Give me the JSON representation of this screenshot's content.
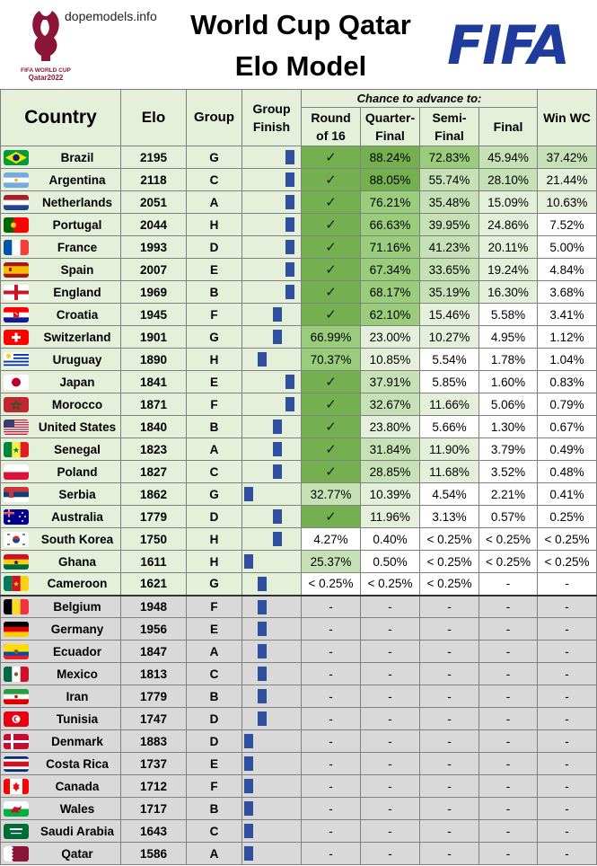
{
  "site": "dopemodels.info",
  "title_line1": "World Cup Qatar",
  "title_line2": "Elo Model",
  "logo_text": {
    "brand": "FIFA",
    "badge1": "FIFA WORLD CUP",
    "badge2": "Qatar2022"
  },
  "colors": {
    "header_green": "#e4f0da",
    "bar_blue": "#2f4f9f",
    "eliminated_gray": "#d9d9d9",
    "fifa_blue": "#1f3c9c"
  },
  "headers": {
    "country": "Country",
    "elo": "Elo",
    "group": "Group",
    "group_finish_1": "Group",
    "group_finish_2": "Finish",
    "chance": "Chance to advance to:",
    "r16_1": "Round",
    "r16_2": "of 16",
    "qf_1": "Quarter-",
    "qf_2": "Final",
    "sf_1": "Semi-",
    "sf_2": "Final",
    "final": "Final",
    "win": "Win WC"
  },
  "rows": [
    {
      "country": "Brazil",
      "flag": "brazil",
      "elo": "2195",
      "group": "G",
      "finish": 1,
      "r16": "✓",
      "qf": "88.24%",
      "sf": "72.83%",
      "final": "45.94%",
      "win": "37.42%",
      "status": "advanced"
    },
    {
      "country": "Argentina",
      "flag": "argentina",
      "elo": "2118",
      "group": "C",
      "finish": 1,
      "r16": "✓",
      "qf": "88.05%",
      "sf": "55.74%",
      "final": "28.10%",
      "win": "21.44%",
      "status": "advanced"
    },
    {
      "country": "Netherlands",
      "flag": "netherlands",
      "elo": "2051",
      "group": "A",
      "finish": 1,
      "r16": "✓",
      "qf": "76.21%",
      "sf": "35.48%",
      "final": "15.09%",
      "win": "10.63%",
      "status": "advanced"
    },
    {
      "country": "Portugal",
      "flag": "portugal",
      "elo": "2044",
      "group": "H",
      "finish": 1,
      "r16": "✓",
      "qf": "66.63%",
      "sf": "39.95%",
      "final": "24.86%",
      "win": "7.52%",
      "status": "advanced"
    },
    {
      "country": "France",
      "flag": "france",
      "elo": "1993",
      "group": "D",
      "finish": 1,
      "r16": "✓",
      "qf": "71.16%",
      "sf": "41.23%",
      "final": "20.11%",
      "win": "5.00%",
      "status": "advanced"
    },
    {
      "country": "Spain",
      "flag": "spain",
      "elo": "2007",
      "group": "E",
      "finish": 1,
      "r16": "✓",
      "qf": "67.34%",
      "sf": "33.65%",
      "final": "19.24%",
      "win": "4.84%",
      "status": "advanced"
    },
    {
      "country": "England",
      "flag": "england",
      "elo": "1969",
      "group": "B",
      "finish": 1,
      "r16": "✓",
      "qf": "68.17%",
      "sf": "35.19%",
      "final": "16.30%",
      "win": "3.68%",
      "status": "advanced"
    },
    {
      "country": "Croatia",
      "flag": "croatia",
      "elo": "1945",
      "group": "F",
      "finish": 2,
      "r16": "✓",
      "qf": "62.10%",
      "sf": "15.46%",
      "final": "5.58%",
      "win": "3.41%",
      "status": "advanced"
    },
    {
      "country": "Switzerland",
      "flag": "switzerland",
      "elo": "1901",
      "group": "G",
      "finish": 2,
      "r16": "66.99%",
      "qf": "23.00%",
      "sf": "10.27%",
      "final": "4.95%",
      "win": "1.12%",
      "status": "pending"
    },
    {
      "country": "Uruguay",
      "flag": "uruguay",
      "elo": "1890",
      "group": "H",
      "finish": 3,
      "r16": "70.37%",
      "qf": "10.85%",
      "sf": "5.54%",
      "final": "1.78%",
      "win": "1.04%",
      "status": "pending"
    },
    {
      "country": "Japan",
      "flag": "japan",
      "elo": "1841",
      "group": "E",
      "finish": 1,
      "r16": "✓",
      "qf": "37.91%",
      "sf": "5.85%",
      "final": "1.60%",
      "win": "0.83%",
      "status": "advanced"
    },
    {
      "country": "Morocco",
      "flag": "morocco",
      "elo": "1871",
      "group": "F",
      "finish": 1,
      "r16": "✓",
      "qf": "32.67%",
      "sf": "11.66%",
      "final": "5.06%",
      "win": "0.79%",
      "status": "advanced"
    },
    {
      "country": "United States",
      "flag": "usa",
      "elo": "1840",
      "group": "B",
      "finish": 2,
      "r16": "✓",
      "qf": "23.80%",
      "sf": "5.66%",
      "final": "1.30%",
      "win": "0.67%",
      "status": "advanced"
    },
    {
      "country": "Senegal",
      "flag": "senegal",
      "elo": "1823",
      "group": "A",
      "finish": 2,
      "r16": "✓",
      "qf": "31.84%",
      "sf": "11.90%",
      "final": "3.79%",
      "win": "0.49%",
      "status": "advanced"
    },
    {
      "country": "Poland",
      "flag": "poland",
      "elo": "1827",
      "group": "C",
      "finish": 2,
      "r16": "✓",
      "qf": "28.85%",
      "sf": "11.68%",
      "final": "3.52%",
      "win": "0.48%",
      "status": "advanced"
    },
    {
      "country": "Serbia",
      "flag": "serbia",
      "elo": "1862",
      "group": "G",
      "finish": 4,
      "r16": "32.77%",
      "qf": "10.39%",
      "sf": "4.54%",
      "final": "2.21%",
      "win": "0.41%",
      "status": "pending"
    },
    {
      "country": "Australia",
      "flag": "australia",
      "elo": "1779",
      "group": "D",
      "finish": 2,
      "r16": "✓",
      "qf": "11.96%",
      "sf": "3.13%",
      "final": "0.57%",
      "win": "0.25%",
      "status": "advanced"
    },
    {
      "country": "South Korea",
      "flag": "southkorea",
      "elo": "1750",
      "group": "H",
      "finish": 2,
      "r16": "4.27%",
      "qf": "0.40%",
      "sf": "< 0.25%",
      "final": "< 0.25%",
      "win": "< 0.25%",
      "status": "pending"
    },
    {
      "country": "Ghana",
      "flag": "ghana",
      "elo": "1611",
      "group": "H",
      "finish": 4,
      "r16": "25.37%",
      "qf": "0.50%",
      "sf": "< 0.25%",
      "final": "< 0.25%",
      "win": "< 0.25%",
      "status": "pending"
    },
    {
      "country": "Cameroon",
      "flag": "cameroon",
      "elo": "1621",
      "group": "G",
      "finish": 3,
      "r16": "< 0.25%",
      "qf": "< 0.25%",
      "sf": "< 0.25%",
      "final": "-",
      "win": "-",
      "status": "pending"
    },
    {
      "country": "Belgium",
      "flag": "belgium",
      "elo": "1948",
      "group": "F",
      "finish": 3,
      "r16": "-",
      "qf": "-",
      "sf": "-",
      "final": "-",
      "win": "-",
      "status": "eliminated"
    },
    {
      "country": "Germany",
      "flag": "germany",
      "elo": "1956",
      "group": "E",
      "finish": 3,
      "r16": "-",
      "qf": "-",
      "sf": "-",
      "final": "-",
      "win": "-",
      "status": "eliminated"
    },
    {
      "country": "Ecuador",
      "flag": "ecuador",
      "elo": "1847",
      "group": "A",
      "finish": 3,
      "r16": "-",
      "qf": "-",
      "sf": "-",
      "final": "-",
      "win": "-",
      "status": "eliminated"
    },
    {
      "country": "Mexico",
      "flag": "mexico",
      "elo": "1813",
      "group": "C",
      "finish": 3,
      "r16": "-",
      "qf": "-",
      "sf": "-",
      "final": "-",
      "win": "-",
      "status": "eliminated"
    },
    {
      "country": "Iran",
      "flag": "iran",
      "elo": "1779",
      "group": "B",
      "finish": 3,
      "r16": "-",
      "qf": "-",
      "sf": "-",
      "final": "-",
      "win": "-",
      "status": "eliminated"
    },
    {
      "country": "Tunisia",
      "flag": "tunisia",
      "elo": "1747",
      "group": "D",
      "finish": 3,
      "r16": "-",
      "qf": "-",
      "sf": "-",
      "final": "-",
      "win": "-",
      "status": "eliminated"
    },
    {
      "country": "Denmark",
      "flag": "denmark",
      "elo": "1883",
      "group": "D",
      "finish": 4,
      "r16": "-",
      "qf": "-",
      "sf": "-",
      "final": "-",
      "win": "-",
      "status": "eliminated"
    },
    {
      "country": "Costa Rica",
      "flag": "costarica",
      "elo": "1737",
      "group": "E",
      "finish": 4,
      "r16": "-",
      "qf": "-",
      "sf": "-",
      "final": "-",
      "win": "-",
      "status": "eliminated"
    },
    {
      "country": "Canada",
      "flag": "canada",
      "elo": "1712",
      "group": "F",
      "finish": 4,
      "r16": "-",
      "qf": "-",
      "sf": "-",
      "final": "-",
      "win": "-",
      "status": "eliminated"
    },
    {
      "country": "Wales",
      "flag": "wales",
      "elo": "1717",
      "group": "B",
      "finish": 4,
      "r16": "-",
      "qf": "-",
      "sf": "-",
      "final": "-",
      "win": "-",
      "status": "eliminated"
    },
    {
      "country": "Saudi Arabia",
      "flag": "saudiarabia",
      "elo": "1643",
      "group": "C",
      "finish": 4,
      "r16": "-",
      "qf": "-",
      "sf": "-",
      "final": "-",
      "win": "-",
      "status": "eliminated"
    },
    {
      "country": "Qatar",
      "flag": "qatar",
      "elo": "1586",
      "group": "A",
      "finish": 4,
      "r16": "-",
      "qf": "-",
      "sf": "-",
      "final": "-",
      "win": "-",
      "status": "eliminated"
    }
  ]
}
